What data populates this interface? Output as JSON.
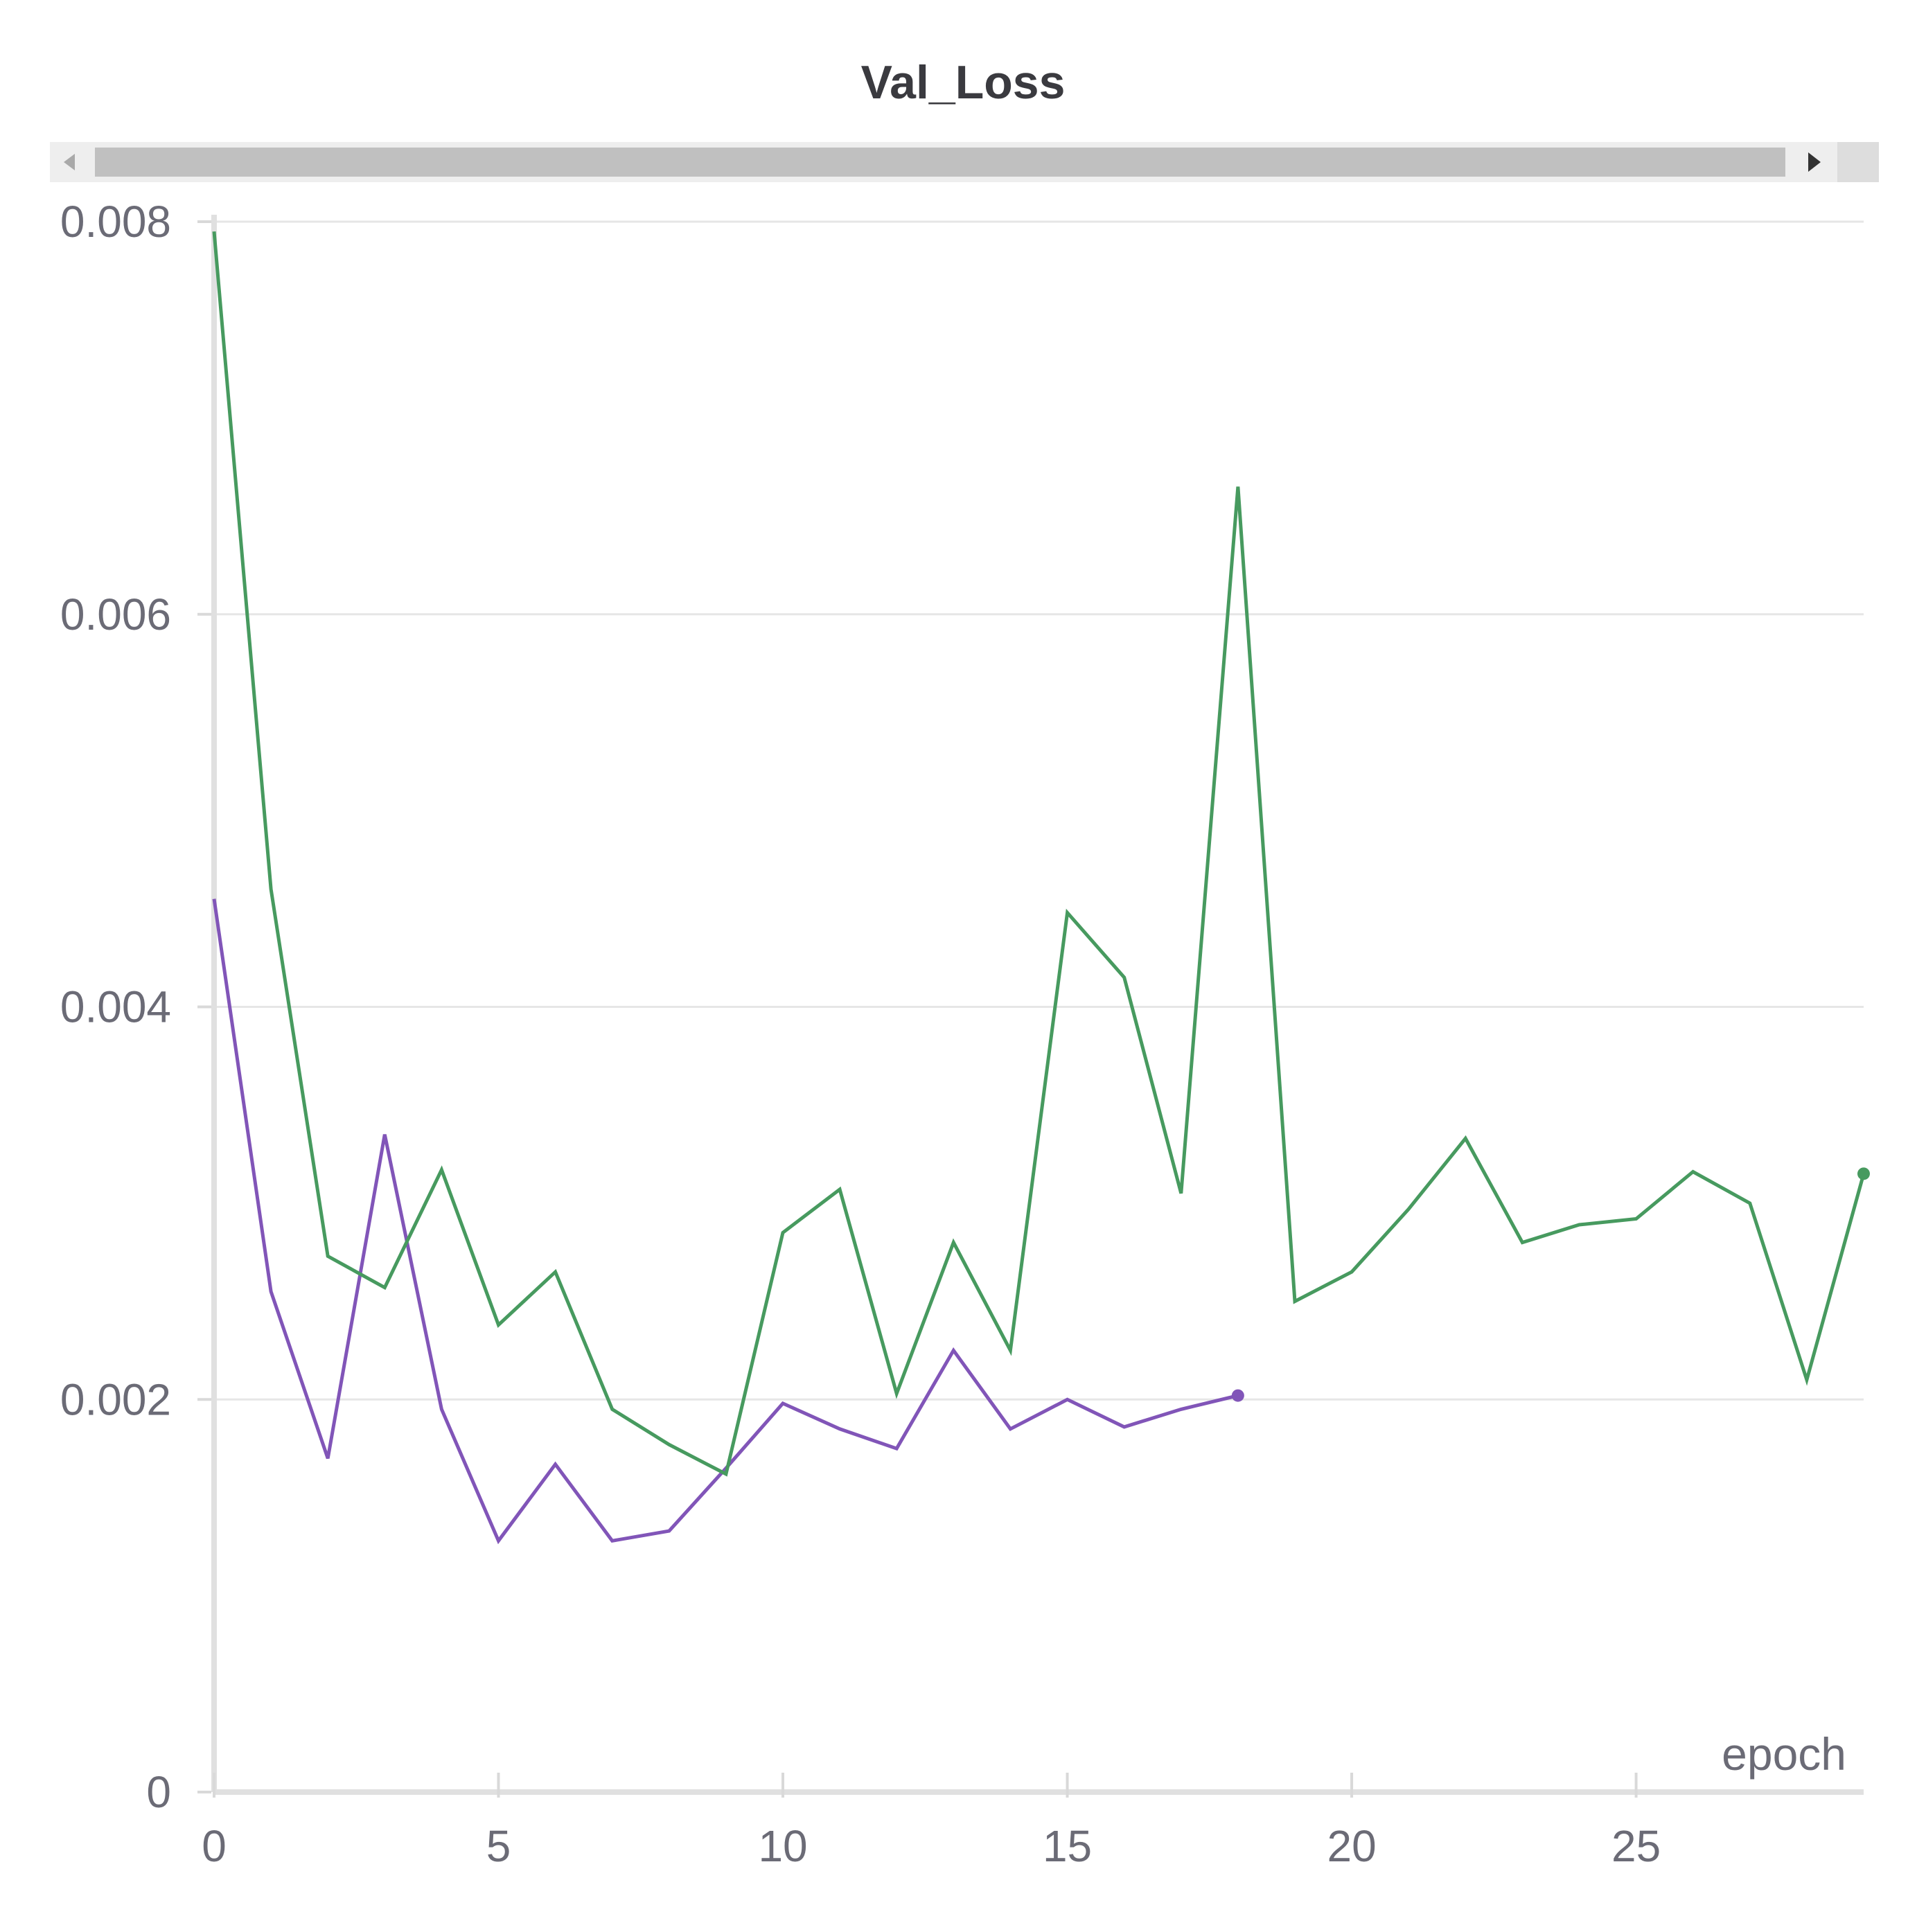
{
  "chart_data": {
    "type": "line",
    "title": "Val_Loss",
    "xlabel": "epoch",
    "ylabel": "",
    "xlim": [
      0,
      29
    ],
    "ylim": [
      0,
      0.008
    ],
    "x_ticks": [
      0,
      5,
      10,
      15,
      20,
      25
    ],
    "y_ticks": [
      0,
      0.002,
      0.004,
      0.006,
      0.008
    ],
    "y_tick_labels": [
      "0",
      "0.002",
      "0.004",
      "0.006",
      "0.008"
    ],
    "grid": true,
    "series": [
      {
        "color": "#8155b8",
        "x": [
          0,
          1,
          2,
          3,
          4,
          5,
          6,
          7,
          8,
          9,
          10,
          11,
          12,
          13,
          14,
          15,
          16,
          17,
          18
        ],
        "values": [
          0.00455,
          0.00255,
          0.0017,
          0.00335,
          0.00195,
          0.00128,
          0.00167,
          0.00128,
          0.00133,
          0.00165,
          0.00198,
          0.00185,
          0.00175,
          0.00225,
          0.00185,
          0.002,
          0.00186,
          0.00195,
          0.00202
        ],
        "end_marker": true
      },
      {
        "color": "#479a5f",
        "x": [
          0,
          1,
          2,
          3,
          4,
          5,
          6,
          7,
          8,
          9,
          10,
          11,
          12,
          13,
          14,
          15,
          16,
          17,
          18,
          19,
          20,
          21,
          22,
          23,
          24,
          25,
          26,
          27,
          28,
          29
        ],
        "values": [
          0.00795,
          0.0046,
          0.00273,
          0.00257,
          0.00317,
          0.00238,
          0.00265,
          0.00195,
          0.00177,
          0.00162,
          0.00285,
          0.00307,
          0.00203,
          0.0028,
          0.00225,
          0.00448,
          0.00415,
          0.00305,
          0.00665,
          0.0025,
          0.00265,
          0.00297,
          0.00333,
          0.0028,
          0.00289,
          0.00292,
          0.00316,
          0.003,
          0.0021,
          0.00315
        ],
        "end_marker": true
      }
    ]
  }
}
